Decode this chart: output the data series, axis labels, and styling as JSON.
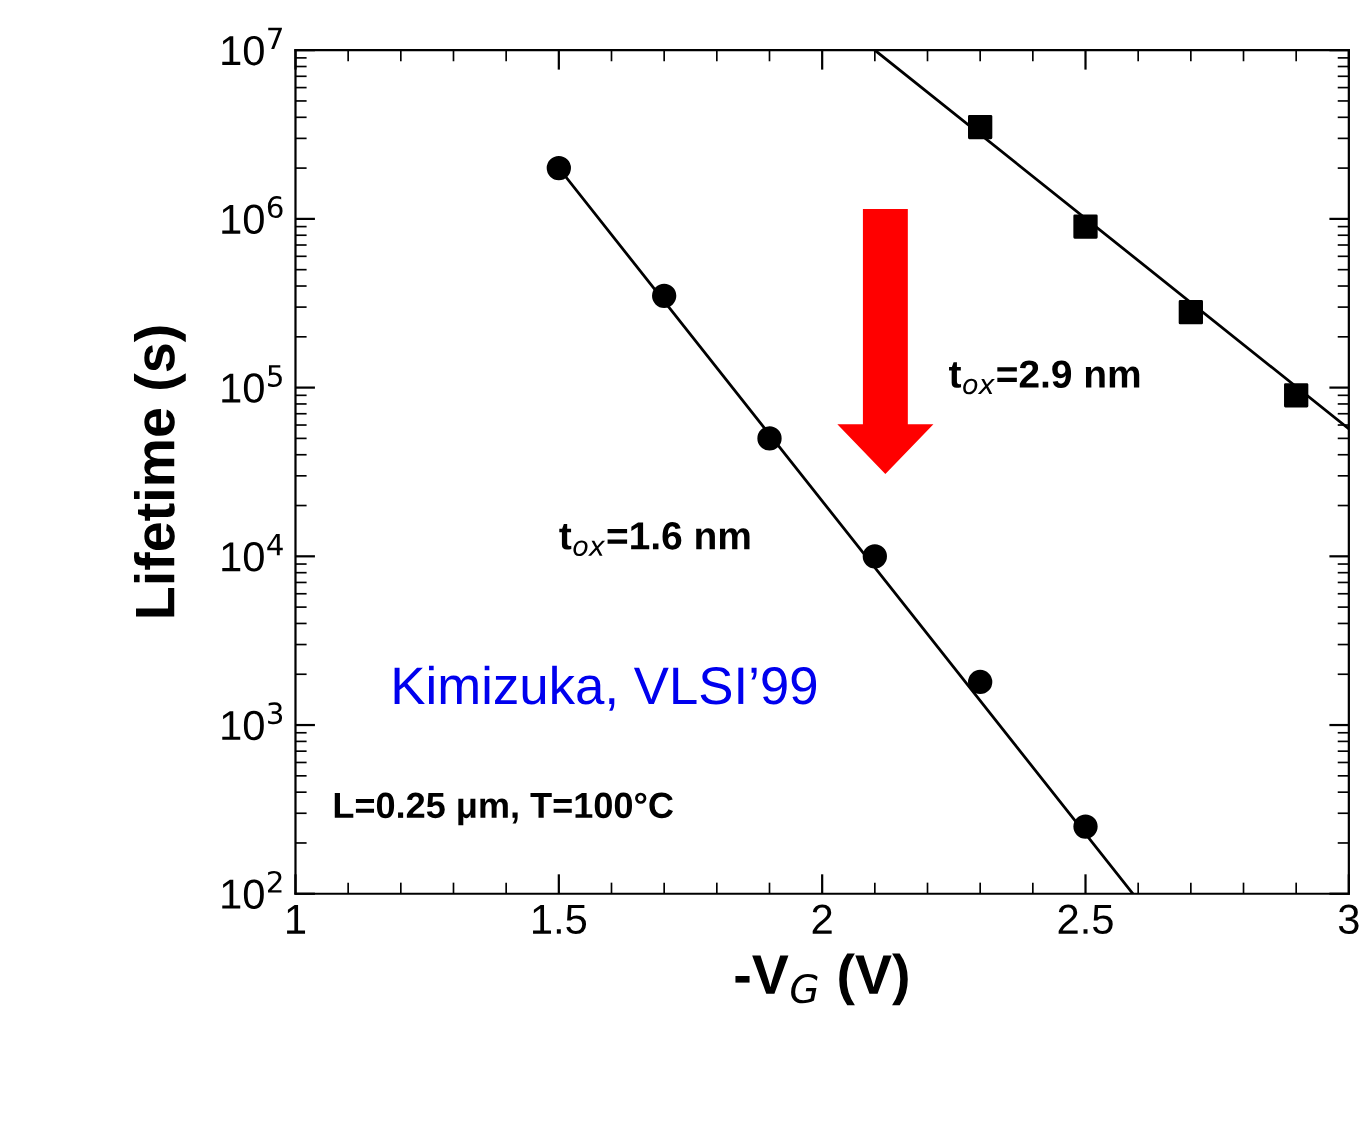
{
  "chart_data": {
    "type": "scatter",
    "xlabel": "-V$_{G}$ (V)",
    "ylabel": "Lifetime (s)",
    "log": "y",
    "xlim": [
      1,
      3
    ],
    "xticks": [
      1,
      1.5,
      2,
      2.5,
      3
    ],
    "ylim": [
      100,
      10000000
    ],
    "yticks": [
      {
        "value": 100,
        "label": "10$^{2}$"
      },
      {
        "value": 1000,
        "label": "10$^{3}$"
      },
      {
        "value": 10000,
        "label": "10$^{4}$"
      },
      {
        "value": 100000,
        "label": "10$^{5}$"
      },
      {
        "value": 1000000,
        "label": "10$^{6}$"
      },
      {
        "value": 10000000,
        "label": "10$^{7}$"
      }
    ],
    "grid": false,
    "legend": false,
    "series": [
      {
        "name": "t$_{ox}$=1.6 nm",
        "marker": "circle",
        "color": "#000000",
        "x": [
          1.5,
          1.7,
          1.9,
          2.1,
          2.3,
          2.5
        ],
        "values": [
          2000000,
          350000,
          50000,
          10000,
          1800,
          250
        ]
      },
      {
        "name": "t$_{ox}$=2.9 nm",
        "marker": "square",
        "color": "#000000",
        "x": [
          2.3,
          2.5,
          2.7,
          2.9
        ],
        "values": [
          3500000,
          900000,
          280000,
          90000
        ]
      },
      {
        "type": "line",
        "marker": "none",
        "color": "#000000",
        "x": [
          1.5,
          2.59
        ],
        "values": [
          2000000,
          100
        ]
      },
      {
        "type": "line",
        "marker": "none",
        "color": "#000000",
        "x": [
          2.1,
          3.0
        ],
        "values": [
          10000000,
          57000
        ]
      }
    ],
    "annotations": [
      "Kimizuka, VLSI’99",
      "L=0.25 μm, T=100°C"
    ]
  }
}
